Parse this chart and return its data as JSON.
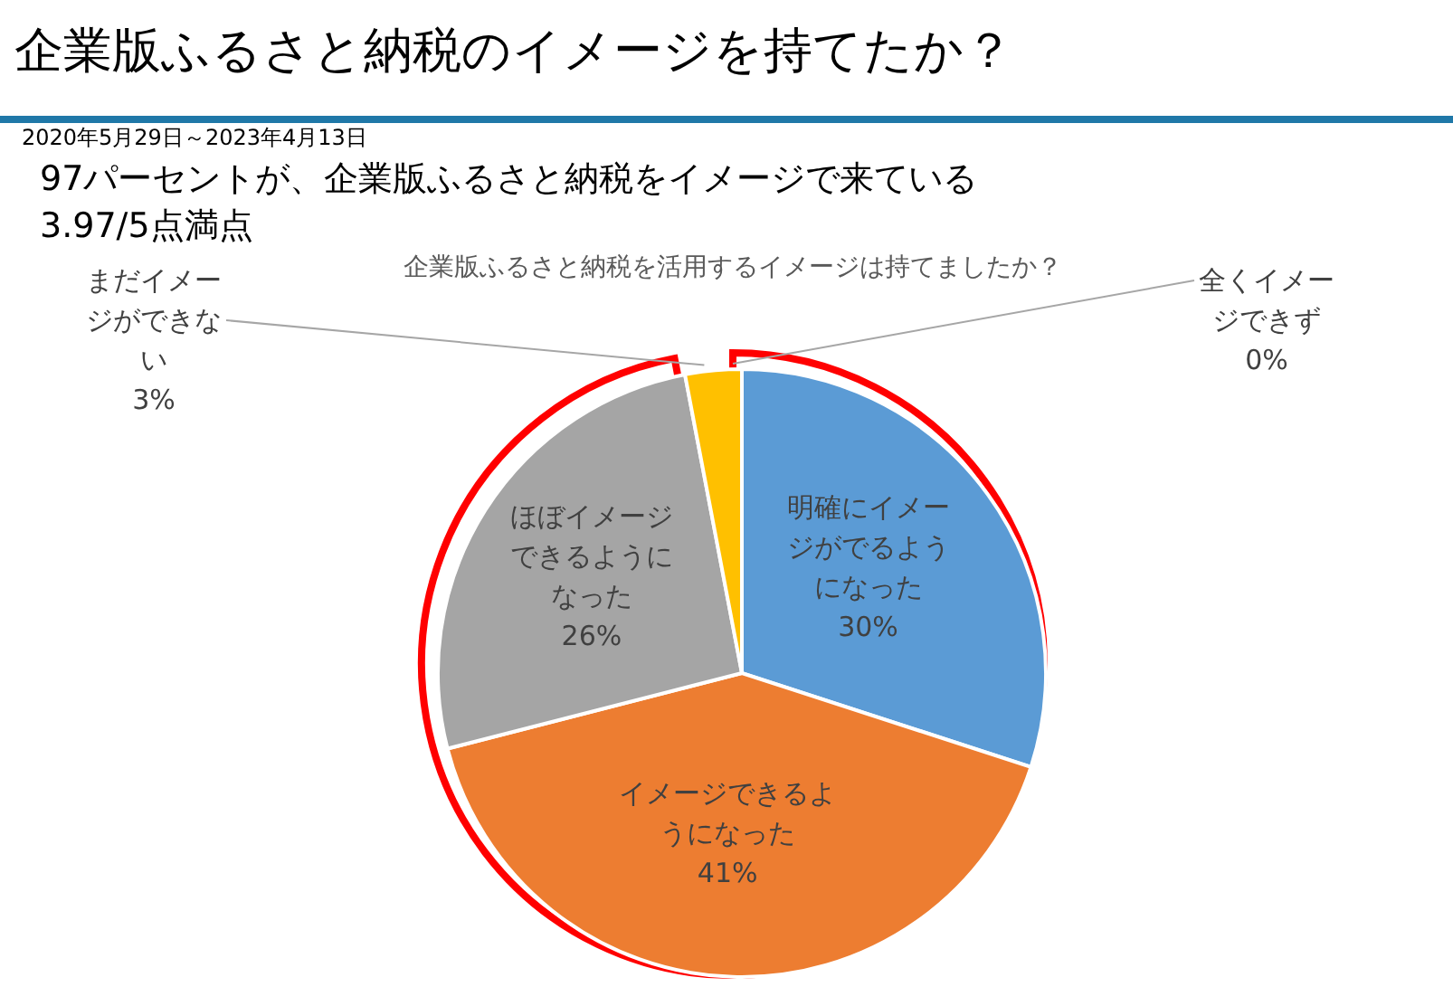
{
  "chart_data": {
    "type": "pie",
    "title": "企業版ふるさと納税のイメージを持てたか？",
    "subtitle": "企業版ふるさと納税を活用するイメージは持てましたか？",
    "annotations": [
      "2020年5月29日～2023年4月13日",
      "97パーセントが、企業版ふるさと納税をイメージで来ている",
      "3.97/5点満点"
    ],
    "categories": [
      "明確にイメージがでるようになった",
      "イメージできるようになった",
      "ほぼイメージできるようになった",
      "まだイメージができない",
      "全くイメージできず"
    ],
    "values": [
      30,
      41,
      26,
      3,
      0
    ],
    "value_labels": [
      "30%",
      "41%",
      "26%",
      "3%",
      "0%"
    ],
    "colors": [
      "#5b9bd5",
      "#ed7d31",
      "#a5a5a5",
      "#ffc000",
      "#4472c4"
    ]
  }
}
